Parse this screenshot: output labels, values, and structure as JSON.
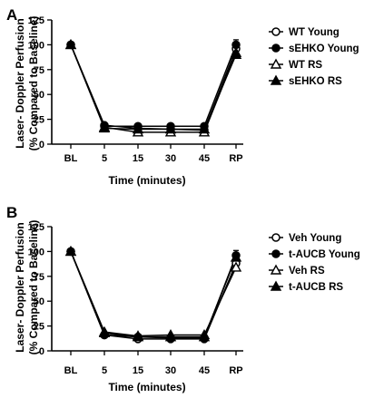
{
  "panels_text": {
    "a": {
      "letter": "A",
      "ylabel_line1": "Laser- Doppler Perfusion",
      "ylabel_line2": "(% Compared to Baseline)",
      "xlabel": "Time (minutes)"
    },
    "b": {
      "letter": "B",
      "ylabel_line1": "Laser- Doppler Perfusion",
      "ylabel_line2": "(% Compared to Baseline)",
      "xlabel": "Time (minutes)"
    }
  },
  "chart_data": [
    {
      "type": "line",
      "panel": "A",
      "title": "",
      "xlabel": "Time (minutes)",
      "ylabel": "Laser- Doppler Perfusion (% Compared to Baseline)",
      "categories": [
        "BL",
        "5",
        "15",
        "30",
        "45",
        "RP"
      ],
      "ylim": [
        0,
        125
      ],
      "yticks": [
        0,
        25,
        50,
        75,
        100,
        125
      ],
      "grid": false,
      "legend_position": "right",
      "series": [
        {
          "name": "WT Young",
          "marker": "circle-open",
          "values": [
            100,
            19,
            16,
            15,
            14,
            96
          ]
        },
        {
          "name": "sEHKO Young",
          "marker": "circle-filled",
          "values": [
            100,
            18,
            18,
            18,
            18,
            100
          ]
        },
        {
          "name": "WT RS",
          "marker": "triangle-open",
          "values": [
            100,
            17,
            12,
            12,
            12,
            92
          ]
        },
        {
          "name": "sEHKO RS",
          "marker": "triangle-filled",
          "values": [
            100,
            16,
            15,
            15,
            15,
            90
          ]
        }
      ]
    },
    {
      "type": "line",
      "panel": "B",
      "title": "",
      "xlabel": "Time (minutes)",
      "ylabel": "Laser- Doppler Perfusion (% Compared to Baseline)",
      "categories": [
        "BL",
        "5",
        "15",
        "30",
        "45",
        "RP"
      ],
      "ylim": [
        0,
        125
      ],
      "yticks": [
        0,
        25,
        50,
        75,
        100,
        125
      ],
      "grid": false,
      "legend_position": "right",
      "series": [
        {
          "name": "Veh Young",
          "marker": "circle-open",
          "values": [
            100,
            16,
            12,
            12,
            12,
            88
          ]
        },
        {
          "name": "t-AUCB Young",
          "marker": "circle-filled",
          "values": [
            100,
            16,
            14,
            13,
            13,
            96
          ]
        },
        {
          "name": "Veh RS",
          "marker": "triangle-open",
          "values": [
            100,
            19,
            15,
            16,
            16,
            84
          ]
        },
        {
          "name": "t-AUCB RS",
          "marker": "triangle-filled",
          "values": [
            100,
            18,
            14,
            14,
            14,
            94
          ]
        }
      ]
    }
  ]
}
